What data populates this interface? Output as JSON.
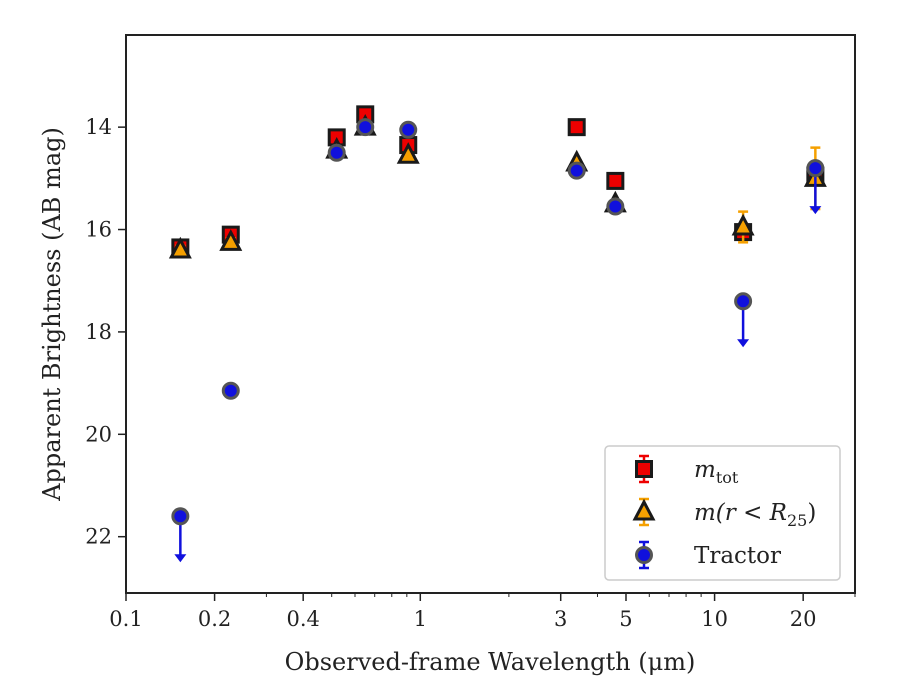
{
  "chart_data": {
    "type": "scatter",
    "title": "",
    "xlabel": "Observed-frame Wavelength (μm)",
    "ylabel": "Apparent Brightness (AB mag)",
    "x_scale": "log",
    "xlim": [
      0.1,
      30
    ],
    "ylim": [
      23.1,
      12.2
    ],
    "y_inverted": true,
    "x_ticks": [
      0.1,
      0.2,
      0.4,
      1,
      3,
      5,
      10,
      20
    ],
    "x_tick_labels": [
      "0.1",
      "0.2",
      "0.4",
      "1",
      "3",
      "5",
      "10",
      "20"
    ],
    "y_ticks": [
      14,
      16,
      18,
      20,
      22
    ],
    "y_tick_labels": [
      "14",
      "16",
      "18",
      "20",
      "22"
    ],
    "grid": false,
    "legend_position": "lower-right",
    "series": [
      {
        "name": "m_tot",
        "legend_label": "m",
        "legend_sub": "tot",
        "marker": "square",
        "face_color": "#ee0000",
        "edge_color": "#1a1a1a",
        "err_color": "#ee0000",
        "points": [
          {
            "x": 0.153,
            "y": 16.35,
            "err": 0.12
          },
          {
            "x": 0.227,
            "y": 16.1,
            "err": 0.1
          },
          {
            "x": 0.52,
            "y": 14.2,
            "err": 0.1
          },
          {
            "x": 0.65,
            "y": 13.75,
            "err": 0.1
          },
          {
            "x": 0.91,
            "y": 14.35,
            "err": 0.1
          },
          {
            "x": 3.4,
            "y": 14.0,
            "err": 0.05
          },
          {
            "x": 4.6,
            "y": 15.05,
            "err": 0.05
          },
          {
            "x": 12.5,
            "y": 16.05,
            "err": 0.15
          },
          {
            "x": 22.0,
            "y": 14.95,
            "err": 0.18
          }
        ]
      },
      {
        "name": "m(r < R_25)",
        "legend_label": "m(r < R",
        "legend_sub": "25",
        "legend_suffix": ")",
        "marker": "triangle",
        "face_color": "#f5a000",
        "edge_color": "#1a1a1a",
        "err_color": "#f5a000",
        "points": [
          {
            "x": 0.153,
            "y": 16.4,
            "err": 0.08
          },
          {
            "x": 0.227,
            "y": 16.25,
            "err": 0.08
          },
          {
            "x": 0.52,
            "y": 14.45,
            "err": 0.05
          },
          {
            "x": 0.65,
            "y": 14.0,
            "err": 0.05
          },
          {
            "x": 0.91,
            "y": 14.55,
            "err": 0.05
          },
          {
            "x": 3.4,
            "y": 14.7,
            "err": 0.05
          },
          {
            "x": 4.6,
            "y": 15.5,
            "err": 0.05
          },
          {
            "x": 12.5,
            "y": 15.95,
            "err": 0.3
          },
          {
            "x": 22.0,
            "y": 15.0,
            "err": 0.6
          }
        ]
      },
      {
        "name": "Tractor",
        "legend_label": "Tractor",
        "marker": "circle",
        "face_color": "#1010dd",
        "edge_color": "#555555",
        "err_color": "#1010dd",
        "points": [
          {
            "x": 0.153,
            "y": 21.6,
            "upper_limit": true
          },
          {
            "x": 0.227,
            "y": 19.15
          },
          {
            "x": 0.52,
            "y": 14.5
          },
          {
            "x": 0.65,
            "y": 14.0
          },
          {
            "x": 0.91,
            "y": 14.05
          },
          {
            "x": 3.4,
            "y": 14.85
          },
          {
            "x": 4.6,
            "y": 15.55
          },
          {
            "x": 12.5,
            "y": 17.4,
            "upper_limit": true
          },
          {
            "x": 22.0,
            "y": 14.8,
            "upper_limit": true
          }
        ]
      }
    ]
  }
}
